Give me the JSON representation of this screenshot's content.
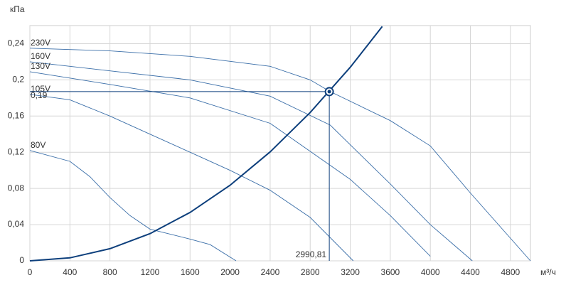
{
  "chart_data": {
    "type": "line",
    "y_label": "кПа",
    "x_label": "м³/ч",
    "xlim": [
      0,
      5000
    ],
    "ylim": [
      0,
      0.26
    ],
    "xticks": [
      0,
      400,
      800,
      1200,
      1600,
      2000,
      2400,
      2800,
      3200,
      3600,
      4000,
      4400,
      4800
    ],
    "yticks": [
      0,
      {
        "value": 0.04,
        "label": "0,04"
      },
      {
        "value": 0.08,
        "label": "0,08"
      },
      {
        "value": 0.12,
        "label": "0,12"
      },
      {
        "value": 0.16,
        "label": "0,16"
      },
      {
        "value": 0.2,
        "label": "0,2"
      },
      {
        "value": 0.24,
        "label": "0,24"
      }
    ],
    "grid": true,
    "series": [
      {
        "name": "230V",
        "color": "#3a6ea8",
        "x": [
          0,
          800,
          1600,
          2400,
          2800,
          3000,
          3600,
          4000,
          4400,
          5000
        ],
        "values": [
          0.235,
          0.232,
          0.226,
          0.215,
          0.2,
          0.187,
          0.155,
          0.127,
          0.075,
          0
        ]
      },
      {
        "name": "160V",
        "color": "#3a6ea8",
        "x": [
          0,
          800,
          1600,
          2400,
          3000,
          3600,
          4000,
          4420
        ],
        "values": [
          0.22,
          0.21,
          0.2,
          0.182,
          0.15,
          0.085,
          0.04,
          0
        ]
      },
      {
        "name": "130V",
        "color": "#3a6ea8",
        "x": [
          0,
          800,
          1600,
          2400,
          3200,
          3600,
          4000
        ],
        "values": [
          0.209,
          0.195,
          0.18,
          0.152,
          0.09,
          0.05,
          0.005
        ]
      },
      {
        "name": "105V",
        "color": "#3a6ea8",
        "x": [
          0,
          400,
          800,
          1200,
          1600,
          2000,
          2400,
          2800,
          3230
        ],
        "values": [
          0.184,
          0.178,
          0.16,
          0.14,
          0.12,
          0.1,
          0.078,
          0.048,
          0
        ]
      },
      {
        "name": "80V",
        "color": "#3a6ea8",
        "x": [
          0,
          400,
          600,
          800,
          1000,
          1200,
          1600,
          1800,
          2060
        ],
        "values": [
          0.122,
          0.11,
          0.093,
          0.07,
          0.05,
          0.035,
          0.024,
          0.018,
          0
        ]
      }
    ],
    "system_curve": {
      "color": "#0d3f7c",
      "x": [
        0,
        400,
        800,
        1200,
        1600,
        2000,
        2400,
        2800,
        3200,
        3520
      ],
      "values": [
        0,
        0.0033,
        0.0134,
        0.0301,
        0.0535,
        0.0836,
        0.1204,
        0.1639,
        0.214,
        0.259
      ]
    },
    "operating_point": {
      "x": 2990.81,
      "y": 0.187,
      "x_label": "2990,81",
      "y_label": "0,19"
    }
  }
}
